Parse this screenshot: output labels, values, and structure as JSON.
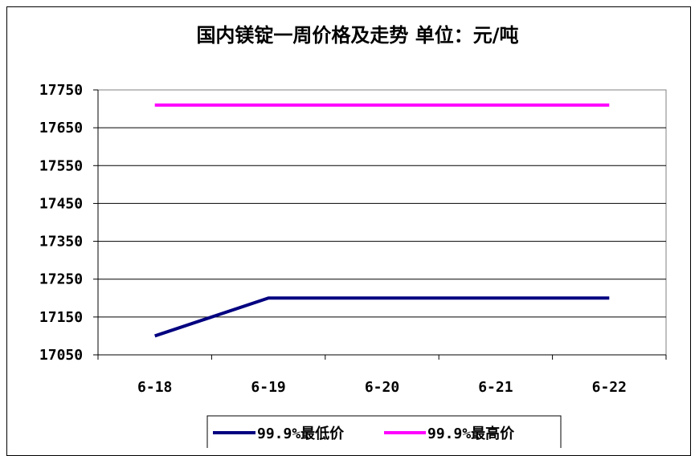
{
  "chart_data": {
    "type": "line",
    "title": "国内镁锭一周价格及走势 单位：元/吨",
    "categories": [
      "6-18",
      "6-19",
      "6-20",
      "6-21",
      "6-22"
    ],
    "ylim": [
      17050,
      17750
    ],
    "yticks": [
      "17750",
      "17650",
      "17550",
      "17450",
      "17350",
      "17250",
      "17150",
      "17050"
    ],
    "grid": true,
    "legend_position": "bottom",
    "series": [
      {
        "name": "99.9%最低价",
        "values": [
          17100,
          17200,
          17200,
          17200,
          17200
        ],
        "color": "#000080"
      },
      {
        "name": "99.9%最高价",
        "values": [
          17710,
          17710,
          17710,
          17710,
          17710
        ],
        "color": "#ff00ff"
      }
    ]
  }
}
